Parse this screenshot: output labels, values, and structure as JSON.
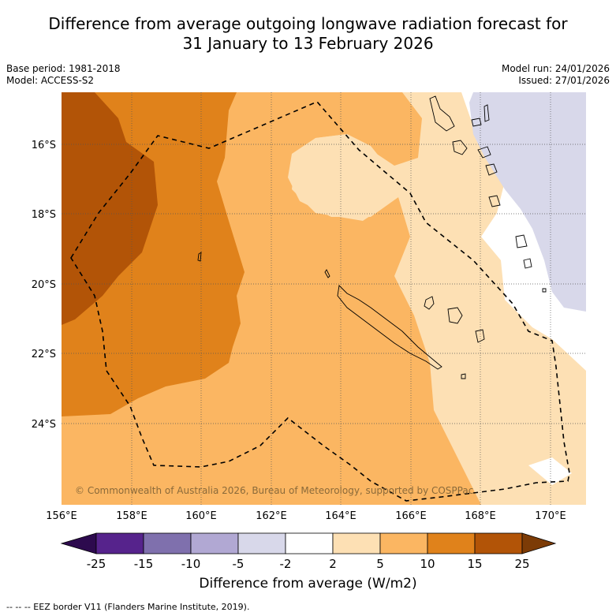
{
  "title": {
    "line1": "Difference from average outgoing longwave radiation forecast for",
    "line2": "31 January to 13 February 2026"
  },
  "meta_left": {
    "base_period": "Base period: 1981-2018",
    "model": "Model: ACCESS-S2"
  },
  "meta_right": {
    "model_run": "Model run: 24/01/2026",
    "issued": "Issued: 27/01/2026"
  },
  "map": {
    "lat_labels": [
      "16°S",
      "18°S",
      "20°S",
      "22°S",
      "24°S"
    ],
    "lon_labels": [
      "156°E",
      "158°E",
      "160°E",
      "162°E",
      "164°E",
      "166°E",
      "168°E",
      "170°E"
    ],
    "copyright": "© Commonwealth of Australia 2026, Bureau of Meteorology, supported by COSPPac"
  },
  "colorbar": {
    "ticks": [
      "-25",
      "-15",
      "-10",
      "-5",
      "-2",
      "2",
      "5",
      "10",
      "15",
      "25"
    ],
    "colors": [
      "#2d0a4e",
      "#56238c",
      "#7f70ad",
      "#b1a8d3",
      "#d8d8ea",
      "#ffffff",
      "#fde0b4",
      "#fbb662",
      "#e0821b",
      "#b25407",
      "#7c3b06"
    ],
    "label": "Difference from average (W/m2)"
  },
  "footer": "--  --  -- EEZ border V11 (Flanders Marine Institute, 2019)."
}
